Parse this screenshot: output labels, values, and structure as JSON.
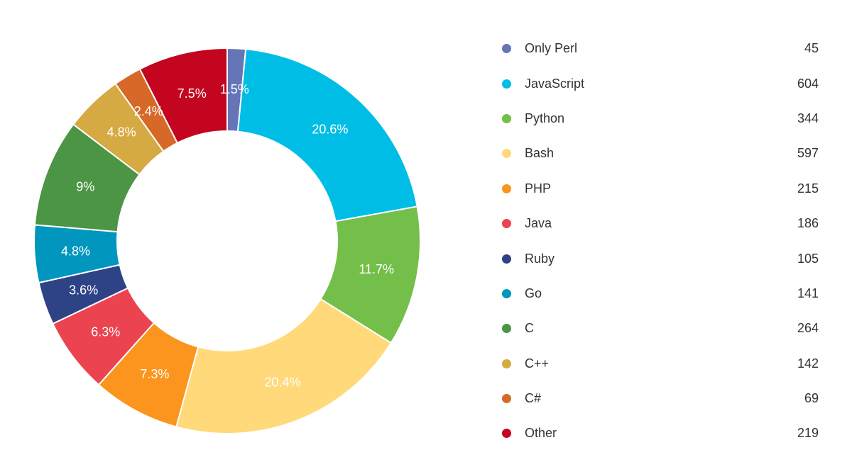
{
  "chart_data": {
    "type": "pie",
    "variant": "donut",
    "legend_position": "right",
    "categories": [
      "Only Perl",
      "JavaScript",
      "Python",
      "Bash",
      "PHP",
      "Java",
      "Ruby",
      "Go",
      "C",
      "C++",
      "C#",
      "Other"
    ],
    "values": [
      45,
      604,
      344,
      597,
      215,
      186,
      105,
      141,
      264,
      142,
      69,
      219
    ],
    "percent_labels": [
      "1.5%",
      "20.6%",
      "11.7%",
      "20.4%",
      "7.3%",
      "6.3%",
      "3.6%",
      "4.8%",
      "9%",
      "4.8%",
      "2.4%",
      "7.5%"
    ],
    "colors": [
      "#6675b8",
      "#00bde6",
      "#74bf4a",
      "#ffd97a",
      "#fb951d",
      "#ec4351",
      "#2e4286",
      "#0196bd",
      "#4b9544",
      "#d6aa42",
      "#d76928",
      "#c3051f"
    ]
  },
  "legend": {
    "items": [
      {
        "label": "Only Perl",
        "value": "45",
        "color": "#6675b8"
      },
      {
        "label": "JavaScript",
        "value": "604",
        "color": "#00bde6"
      },
      {
        "label": "Python",
        "value": "344",
        "color": "#74bf4a"
      },
      {
        "label": "Bash",
        "value": "597",
        "color": "#ffd97a"
      },
      {
        "label": "PHP",
        "value": "215",
        "color": "#fb951d"
      },
      {
        "label": "Java",
        "value": "186",
        "color": "#ec4351"
      },
      {
        "label": "Ruby",
        "value": "105",
        "color": "#2e4286"
      },
      {
        "label": "Go",
        "value": "141",
        "color": "#0196bd"
      },
      {
        "label": "C",
        "value": "264",
        "color": "#4b9544"
      },
      {
        "label": "C++",
        "value": "142",
        "color": "#d6aa42"
      },
      {
        "label": "C#",
        "value": "69",
        "color": "#d76928"
      },
      {
        "label": "Other",
        "value": "219",
        "color": "#c3051f"
      }
    ]
  }
}
